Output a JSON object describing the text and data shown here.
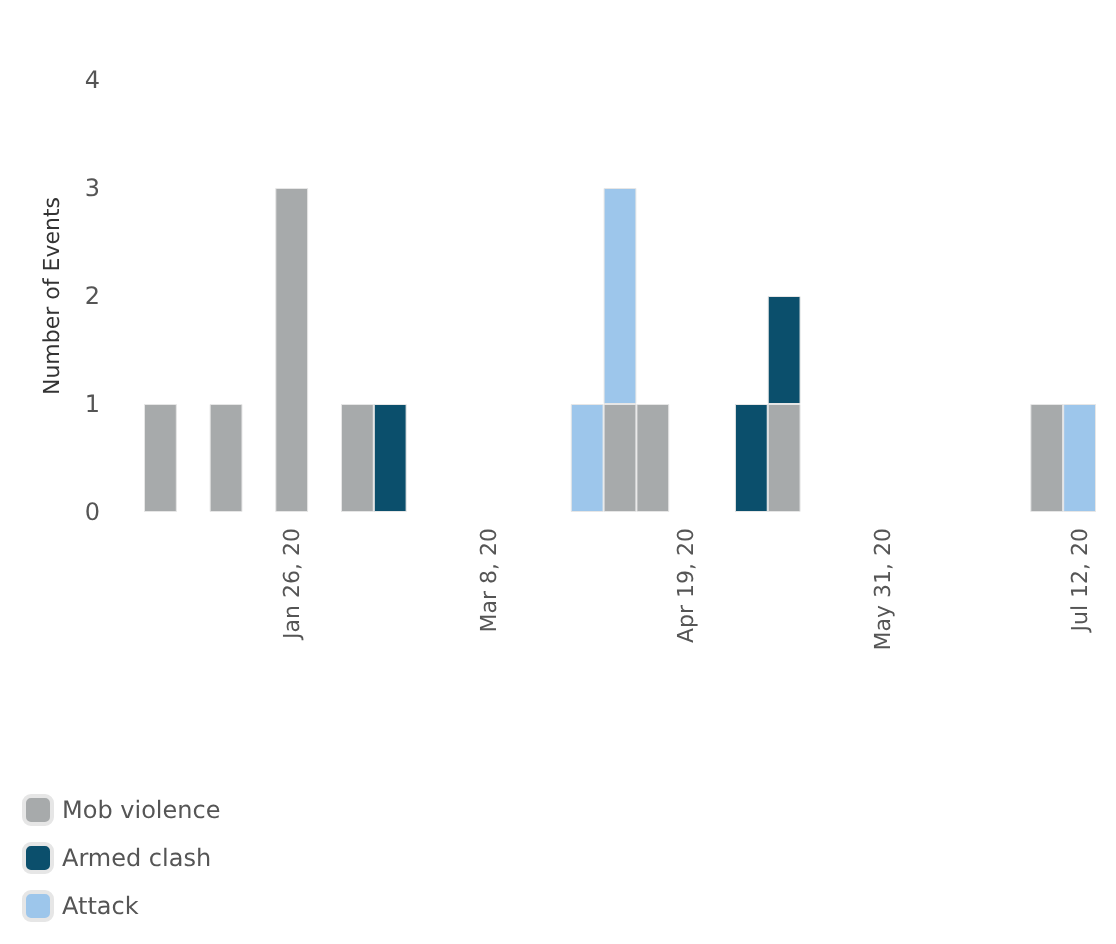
{
  "chart_data": {
    "type": "bar",
    "ylabel": "Number of Events",
    "stacked": true,
    "categories": [
      null,
      null,
      null,
      null,
      "Jan 26, 20",
      null,
      null,
      null,
      null,
      null,
      "Mar 8, 20",
      null,
      null,
      null,
      null,
      null,
      "Apr 19, 20",
      null,
      null,
      null,
      null,
      null,
      "May 31, 20",
      null,
      null,
      null,
      null,
      null,
      "Jul 12, 20"
    ],
    "series": [
      {
        "name": "Mob violence",
        "color": "#a7aaab",
        "values": [
          1,
          null,
          1,
          null,
          3,
          null,
          1,
          null,
          null,
          null,
          null,
          null,
          null,
          null,
          1,
          1,
          null,
          null,
          null,
          1,
          null,
          null,
          null,
          null,
          null,
          null,
          null,
          1,
          null
        ]
      },
      {
        "name": "Armed clash",
        "color": "#0b4f6c",
        "values": [
          null,
          null,
          null,
          null,
          null,
          null,
          null,
          1,
          null,
          null,
          null,
          null,
          null,
          null,
          null,
          null,
          null,
          null,
          1,
          1,
          null,
          null,
          null,
          null,
          null,
          null,
          null,
          null,
          null
        ]
      },
      {
        "name": "Attack",
        "color": "#9dc6eb",
        "values": [
          null,
          null,
          null,
          null,
          null,
          null,
          null,
          null,
          null,
          null,
          null,
          null,
          null,
          1,
          2,
          null,
          null,
          null,
          null,
          null,
          null,
          null,
          null,
          null,
          null,
          null,
          null,
          null,
          1
        ]
      }
    ],
    "ylim": [
      0,
      4
    ],
    "yticks": [
      0,
      1,
      2,
      3,
      4
    ],
    "grid": false,
    "legend": "bottom left"
  }
}
